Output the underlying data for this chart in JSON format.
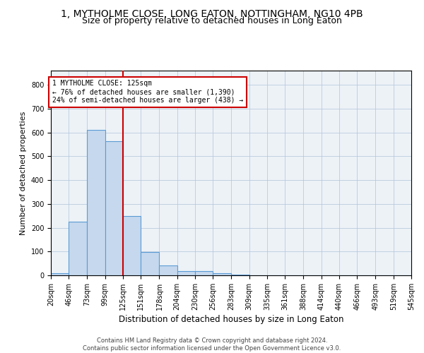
{
  "title": "1, MYTHOLME CLOSE, LONG EATON, NOTTINGHAM, NG10 4PB",
  "subtitle": "Size of property relative to detached houses in Long Eaton",
  "xlabel": "Distribution of detached houses by size in Long Eaton",
  "ylabel": "Number of detached properties",
  "bar_color": "#c5d8ed",
  "bar_edge_color": "#5b9bd5",
  "vline_x": 125,
  "vline_color": "#cc0000",
  "annotation_line1": "1 MYTHOLME CLOSE: 125sqm",
  "annotation_line2": "← 76% of detached houses are smaller (1,390)",
  "annotation_line3": "24% of semi-detached houses are larger (438) →",
  "annotation_box_color": "#cc0000",
  "bin_edges": [
    20,
    46,
    73,
    99,
    125,
    151,
    178,
    204,
    230,
    256,
    283,
    309,
    335,
    361,
    388,
    414,
    440,
    466,
    493,
    519,
    545
  ],
  "bar_heights": [
    8,
    225,
    612,
    562,
    250,
    97,
    42,
    18,
    18,
    10,
    4,
    0,
    0,
    0,
    0,
    0,
    0,
    0,
    0,
    0
  ],
  "ylim": [
    0,
    860
  ],
  "yticks": [
    0,
    100,
    200,
    300,
    400,
    500,
    600,
    700,
    800
  ],
  "plot_bg_color": "#edf2f7",
  "footer_text": "Contains HM Land Registry data © Crown copyright and database right 2024.\nContains public sector information licensed under the Open Government Licence v3.0.",
  "title_fontsize": 10,
  "subtitle_fontsize": 9,
  "xlabel_fontsize": 8.5,
  "ylabel_fontsize": 8,
  "tick_fontsize": 7,
  "footer_fontsize": 6
}
